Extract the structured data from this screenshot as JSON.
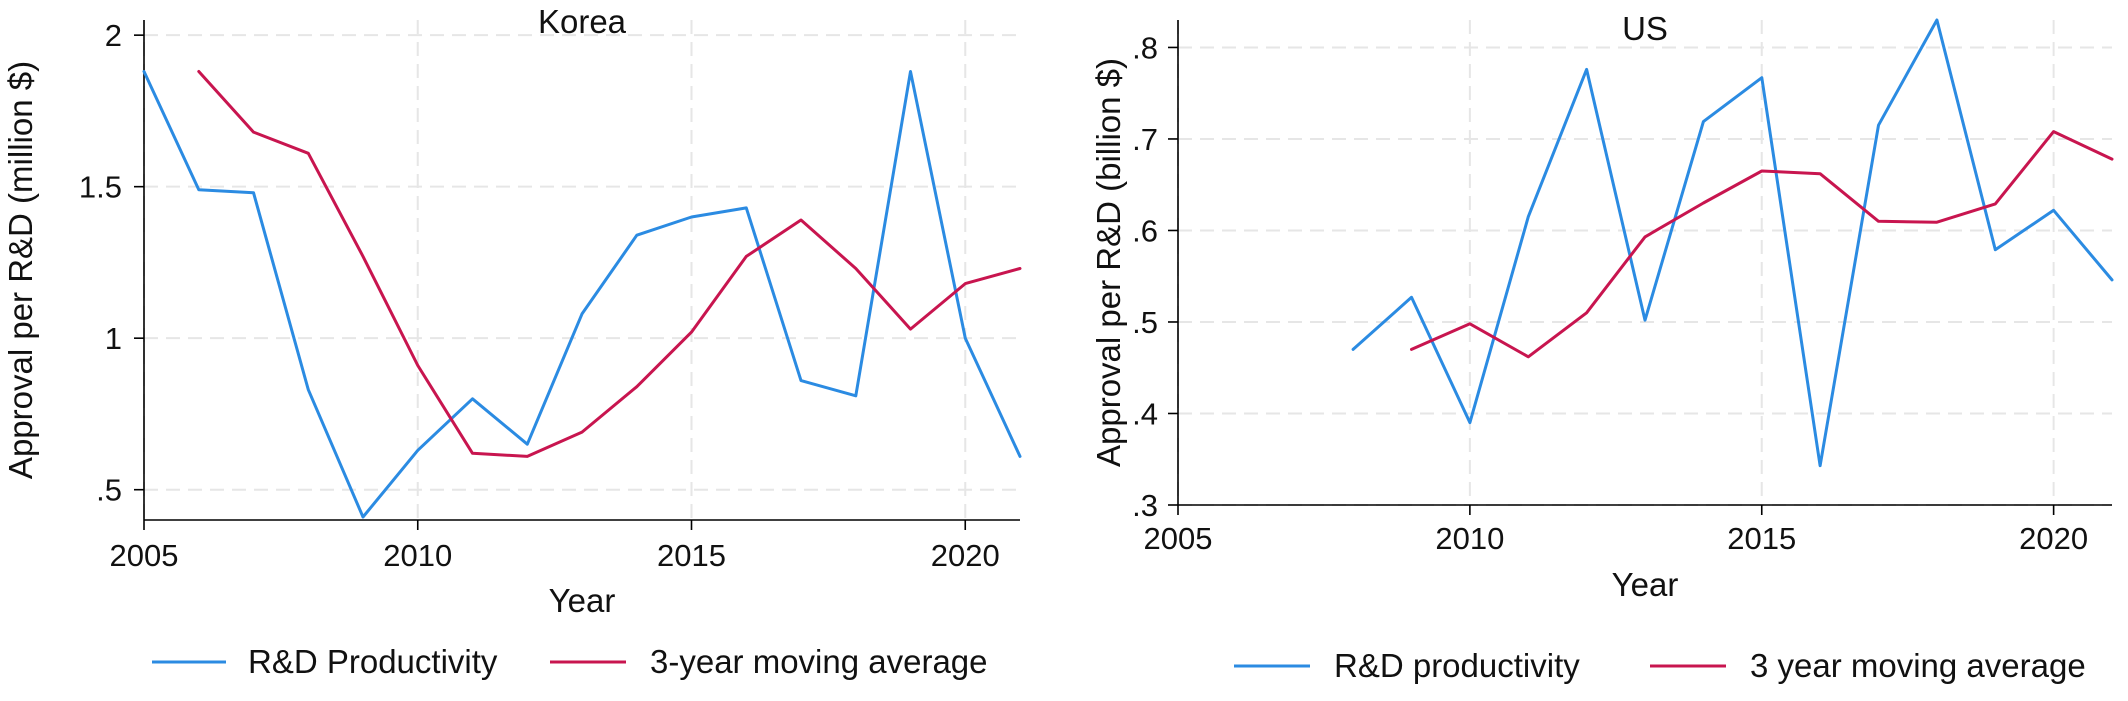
{
  "colors": {
    "productivity": "#2b8be2",
    "moving_average": "#c8154f"
  },
  "chart_data": [
    {
      "type": "line",
      "title": "Korea",
      "xlabel": "Year",
      "ylabel": "Approval per R&D (million $)",
      "xlim": [
        2005,
        2021
      ],
      "ylim": [
        0.4,
        2.05
      ],
      "x_ticks": [
        2005,
        2010,
        2015,
        2020
      ],
      "x_tick_labels": [
        "2005",
        "2010",
        "2015",
        "2020"
      ],
      "y_ticks": [
        0.5,
        1,
        1.5,
        2
      ],
      "y_tick_labels": [
        ".5",
        "1",
        "1.5",
        "2"
      ],
      "grid": true,
      "legend_position": "bottom",
      "series": [
        {
          "name": "R&D Productivity",
          "color": "#2b8be2",
          "x": [
            2005,
            2006,
            2007,
            2008,
            2009,
            2010,
            2011,
            2012,
            2013,
            2014,
            2015,
            2016,
            2017,
            2018,
            2019,
            2020,
            2021
          ],
          "y": [
            1.88,
            1.49,
            1.48,
            0.83,
            0.41,
            0.63,
            0.8,
            0.65,
            1.08,
            1.34,
            1.4,
            1.43,
            0.86,
            0.81,
            1.88,
            1.0,
            0.61
          ]
        },
        {
          "name": "3-year moving average",
          "color": "#c8154f",
          "x": [
            2006,
            2007,
            2008,
            2009,
            2010,
            2011,
            2012,
            2013,
            2014,
            2015,
            2016,
            2017,
            2018,
            2019,
            2020,
            2021
          ],
          "y": [
            1.88,
            1.68,
            1.61,
            1.27,
            0.91,
            0.62,
            0.61,
            0.69,
            0.84,
            1.02,
            1.27,
            1.39,
            1.23,
            1.03,
            1.18,
            1.23
          ]
        }
      ]
    },
    {
      "type": "line",
      "title": "US",
      "xlabel": "Year",
      "ylabel": "Approval per R&D (billion $)",
      "xlim": [
        2005,
        2021
      ],
      "ylim": [
        0.3,
        0.83
      ],
      "x_ticks": [
        2005,
        2010,
        2015,
        2020
      ],
      "x_tick_labels": [
        "2005",
        "2010",
        "2015",
        "2020"
      ],
      "y_ticks": [
        0.3,
        0.4,
        0.5,
        0.6,
        0.7,
        0.8
      ],
      "y_tick_labels": [
        ".3",
        ".4",
        ".5",
        ".6",
        ".7",
        ".8"
      ],
      "grid": true,
      "legend_position": "bottom",
      "series": [
        {
          "name": "R&D productivity",
          "color": "#2b8be2",
          "x": [
            2008,
            2009,
            2010,
            2011,
            2012,
            2013,
            2014,
            2015,
            2016,
            2017,
            2018,
            2019,
            2020,
            2021
          ],
          "y": [
            0.47,
            0.527,
            0.39,
            0.615,
            0.776,
            0.502,
            0.719,
            0.767,
            0.343,
            0.715,
            0.83,
            0.579,
            0.622,
            0.546
          ]
        },
        {
          "name": "3 year moving average",
          "color": "#c8154f",
          "x": [
            2009,
            2010,
            2011,
            2012,
            2013,
            2014,
            2015,
            2016,
            2017,
            2018,
            2019,
            2020,
            2021
          ],
          "y": [
            0.47,
            0.498,
            0.462,
            0.51,
            0.593,
            0.63,
            0.665,
            0.662,
            0.61,
            0.609,
            0.629,
            0.708,
            0.678
          ]
        }
      ]
    }
  ]
}
